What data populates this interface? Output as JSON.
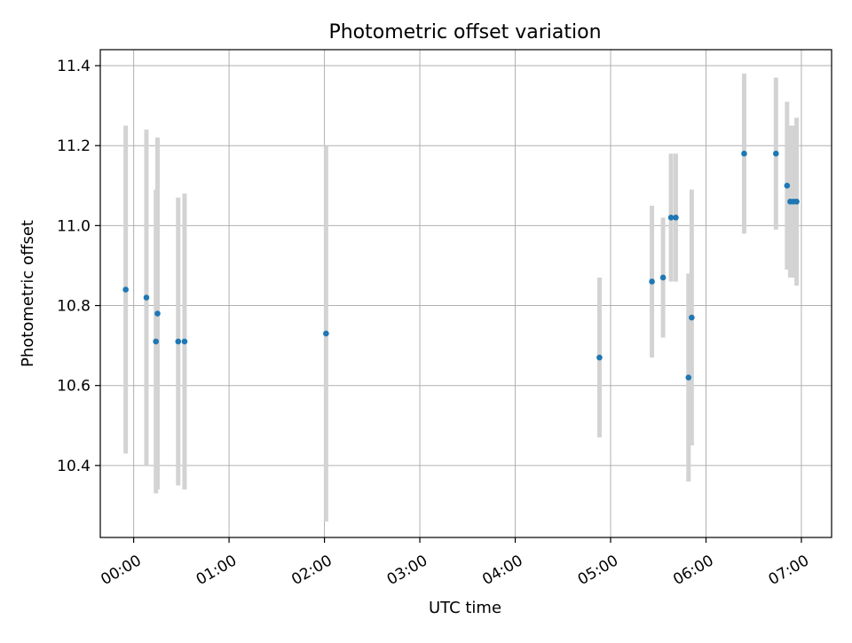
{
  "chart_data": {
    "type": "scatter",
    "title": "Photometric offset variation",
    "xlabel": "UTC time",
    "ylabel": "Photometric offset",
    "x_ticks": [
      "00:00",
      "01:00",
      "02:00",
      "03:00",
      "04:00",
      "05:00",
      "06:00",
      "07:00"
    ],
    "y_ticks": [
      "10.4",
      "10.6",
      "10.8",
      "11.0",
      "11.2",
      "11.4"
    ],
    "xlim": [
      "23:39",
      "07:19"
    ],
    "ylim": [
      10.22,
      11.44
    ],
    "grid": true,
    "marker_color": "#1f77b4",
    "errorbar_color": "#d3d3d3",
    "points": [
      {
        "time": "23:55",
        "value": 10.84,
        "err": 0.41
      },
      {
        "time": "00:08",
        "value": 10.82,
        "err": 0.42
      },
      {
        "time": "00:14",
        "value": 10.71,
        "err": 0.38
      },
      {
        "time": "00:15",
        "value": 10.78,
        "err": 0.44
      },
      {
        "time": "00:28",
        "value": 10.71,
        "err": 0.36
      },
      {
        "time": "00:32",
        "value": 10.71,
        "err": 0.37
      },
      {
        "time": "02:01",
        "value": 10.73,
        "err": 0.47
      },
      {
        "time": "04:53",
        "value": 10.67,
        "err": 0.2
      },
      {
        "time": "05:26",
        "value": 10.86,
        "err": 0.19
      },
      {
        "time": "05:33",
        "value": 10.87,
        "err": 0.15
      },
      {
        "time": "05:38",
        "value": 11.02,
        "err": 0.16
      },
      {
        "time": "05:41",
        "value": 11.02,
        "err": 0.16
      },
      {
        "time": "05:49",
        "value": 10.62,
        "err": 0.26
      },
      {
        "time": "05:51",
        "value": 10.77,
        "err": 0.32
      },
      {
        "time": "06:24",
        "value": 11.18,
        "err": 0.2
      },
      {
        "time": "06:44",
        "value": 11.18,
        "err": 0.19
      },
      {
        "time": "06:51",
        "value": 11.1,
        "err": 0.21
      },
      {
        "time": "06:53",
        "value": 11.06,
        "err": 0.19
      },
      {
        "time": "06:55",
        "value": 11.06,
        "err": 0.19
      },
      {
        "time": "06:57",
        "value": 11.06,
        "err": 0.21
      }
    ]
  }
}
